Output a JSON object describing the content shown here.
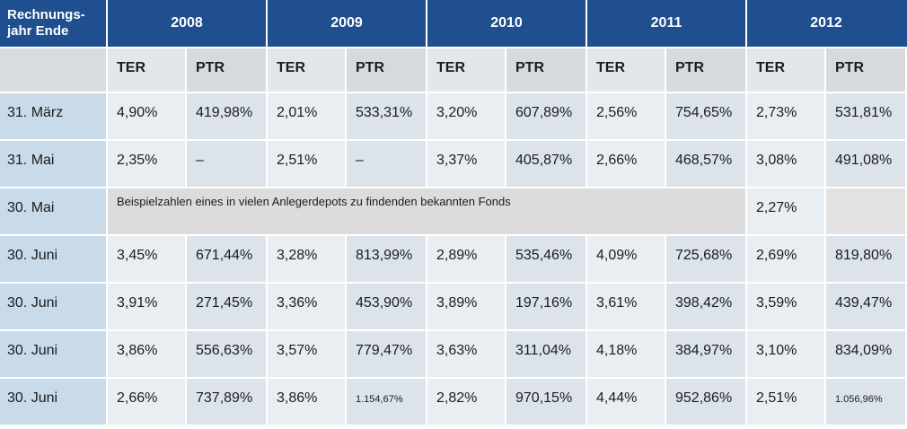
{
  "table": {
    "corner_label": "Rechnungs-jahr Ende",
    "years": [
      "2008",
      "2009",
      "2010",
      "2011",
      "2012"
    ],
    "ter_label": "TER",
    "ptr_label": "PTR",
    "rows": [
      {
        "date": "31. März",
        "cells": [
          "4,90%",
          "419,98%",
          "2,01%",
          "533,31%",
          "3,20%",
          "607,89%",
          "2,56%",
          "754,65%",
          "2,73%",
          "531,81%"
        ]
      },
      {
        "date": "31. Mai",
        "cells": [
          "2,35%",
          "–",
          "2,51%",
          "–",
          "3,37%",
          "405,87%",
          "2,66%",
          "468,57%",
          "3,08%",
          "491,08%"
        ]
      },
      {
        "date": "30. Mai",
        "note": "Beispielzahlen eines in vielen Anlegerdepots zu findenden bekannten Fonds",
        "ter_2012": "2,27%",
        "ptr_2012": ""
      },
      {
        "date": "30. Juni",
        "cells": [
          "3,45%",
          "671,44%",
          "3,28%",
          "813,99%",
          "2,89%",
          "535,46%",
          "4,09%",
          "725,68%",
          "2,69%",
          "819,80%"
        ]
      },
      {
        "date": "30. Juni",
        "cells": [
          "3,91%",
          "271,45%",
          "3,36%",
          "453,90%",
          "3,89%",
          "197,16%",
          "3,61%",
          "398,42%",
          "3,59%",
          "439,47%"
        ]
      },
      {
        "date": "30. Juni",
        "cells": [
          "3,86%",
          "556,63%",
          "3,57%",
          "779,47%",
          "3,63%",
          "311,04%",
          "4,18%",
          "384,97%",
          "3,10%",
          "834,09%"
        ]
      },
      {
        "date": "30. Juni",
        "cells": [
          "2,66%",
          "737,89%",
          "3,86%",
          "1.154,67%",
          "2,82%",
          "970,15%",
          "4,44%",
          "952,86%",
          "2,51%",
          "1.056,96%"
        ]
      }
    ]
  }
}
